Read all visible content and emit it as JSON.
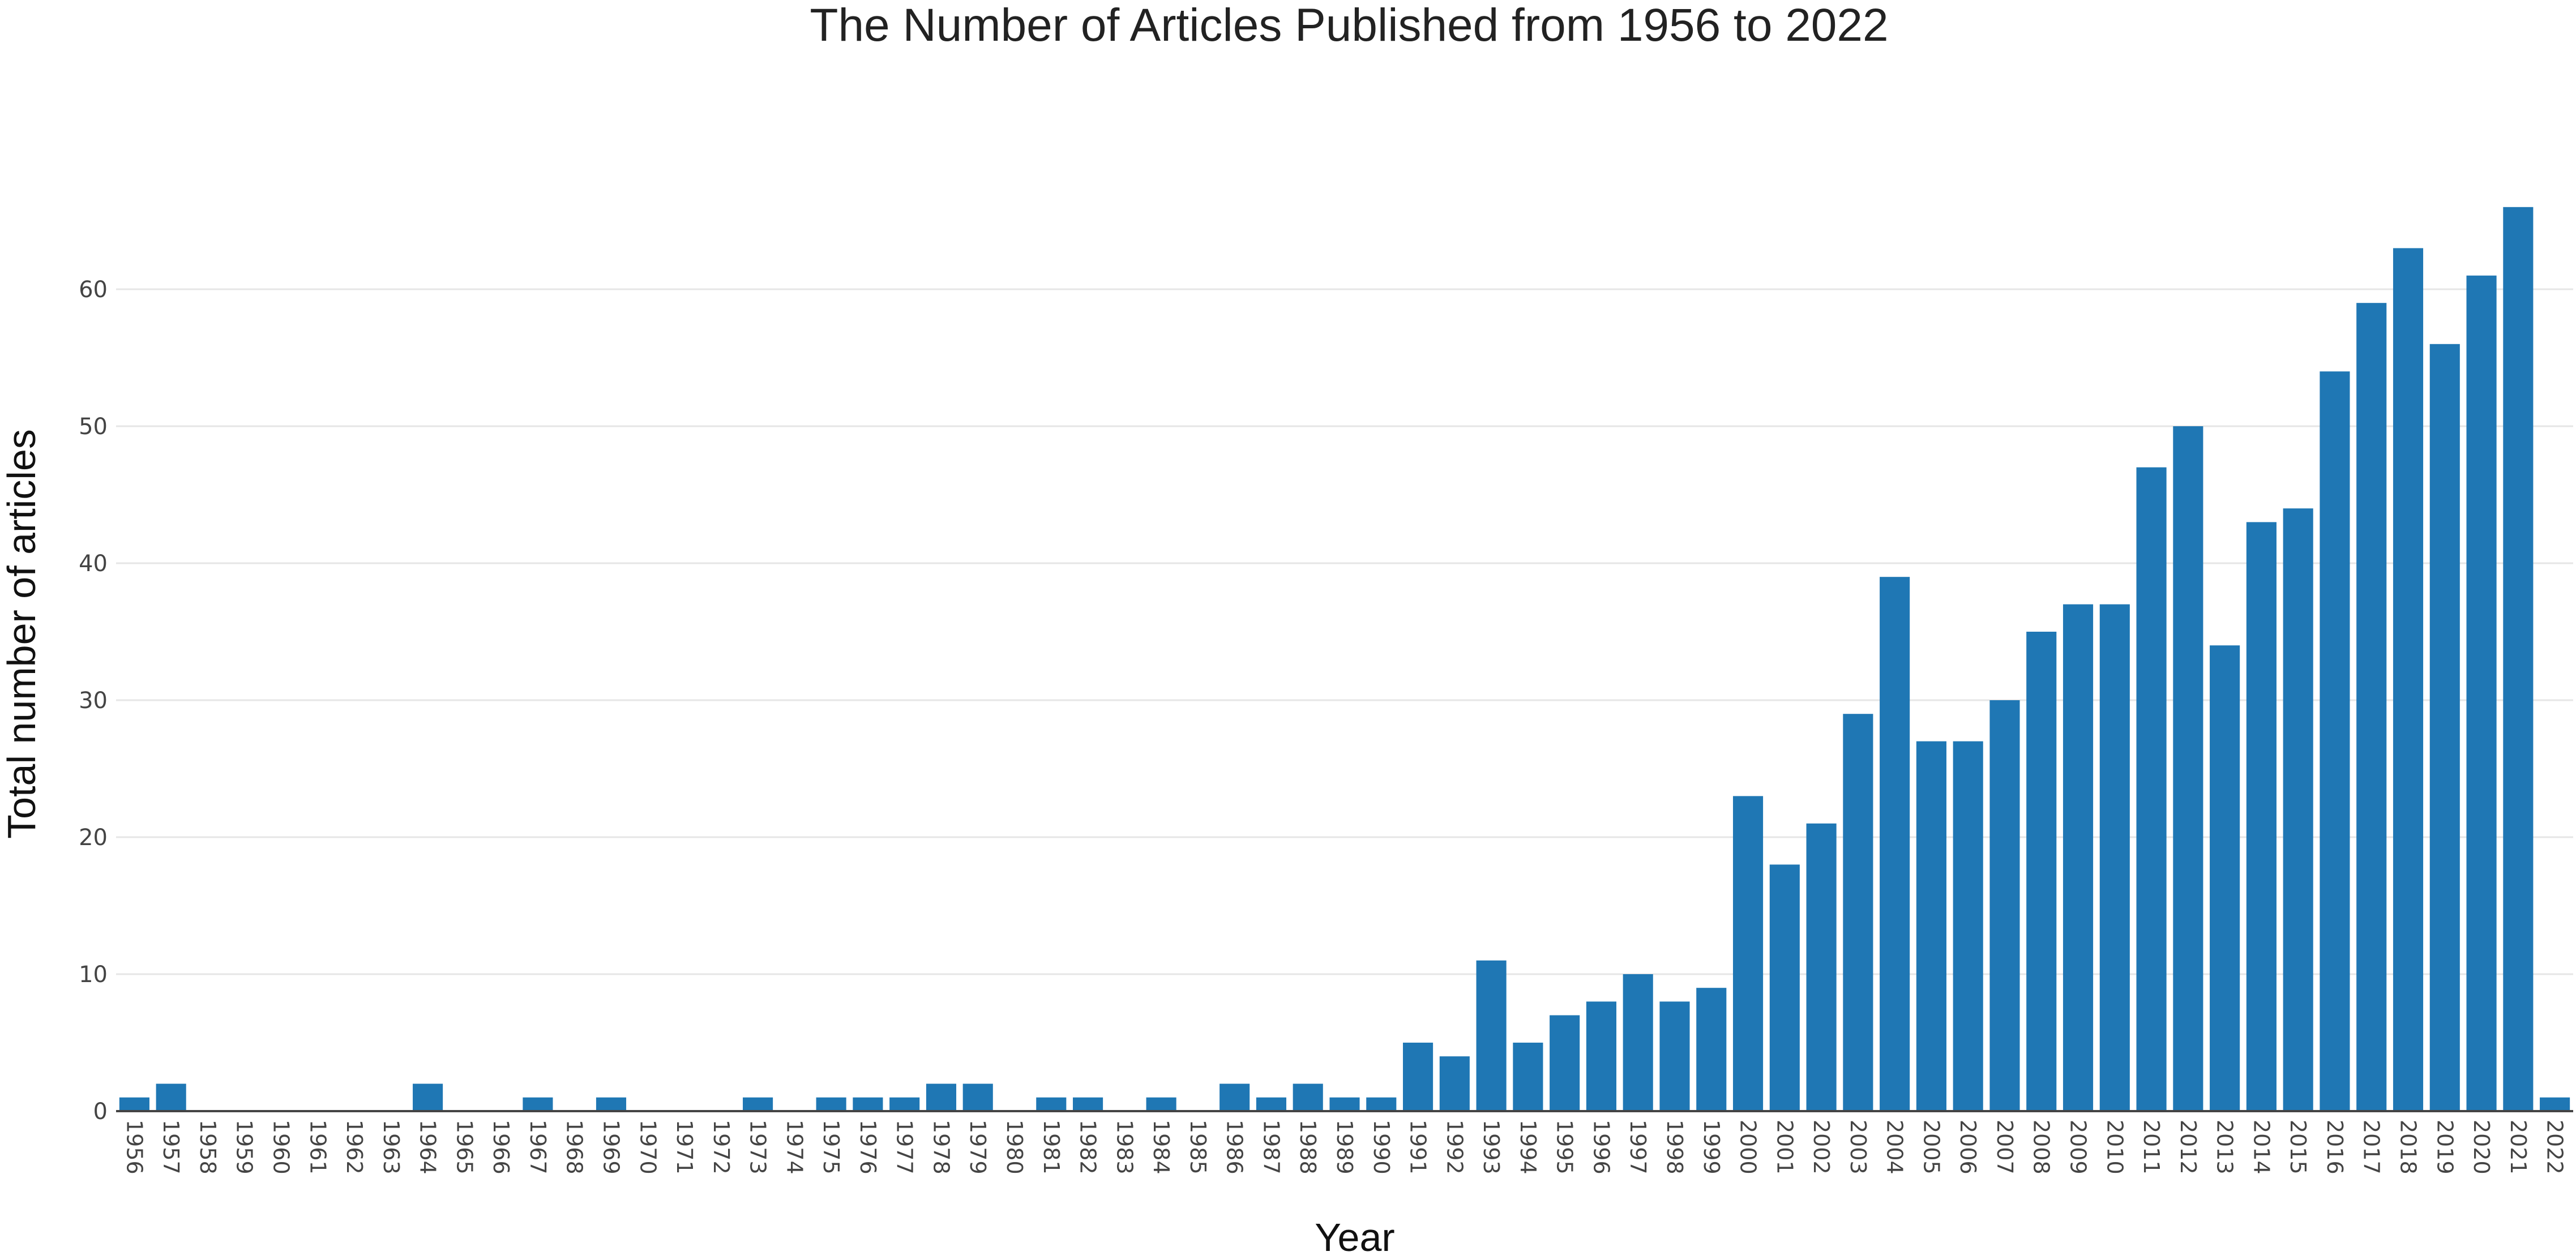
{
  "chart_data": {
    "type": "bar",
    "title": "The Number of Articles Published from 1956 to 2022",
    "xlabel": "Year",
    "ylabel": "Total number of articles",
    "categories": [
      "1956",
      "1957",
      "1958",
      "1959",
      "1960",
      "1961",
      "1962",
      "1963",
      "1964",
      "1965",
      "1966",
      "1967",
      "1968",
      "1969",
      "1970",
      "1971",
      "1972",
      "1973",
      "1974",
      "1975",
      "1976",
      "1977",
      "1978",
      "1979",
      "1980",
      "1981",
      "1982",
      "1983",
      "1984",
      "1985",
      "1986",
      "1987",
      "1988",
      "1989",
      "1990",
      "1991",
      "1992",
      "1993",
      "1994",
      "1995",
      "1996",
      "1997",
      "1998",
      "1999",
      "2000",
      "2001",
      "2002",
      "2003",
      "2004",
      "2005",
      "2006",
      "2007",
      "2008",
      "2009",
      "2010",
      "2011",
      "2012",
      "2013",
      "2014",
      "2015",
      "2016",
      "2017",
      "2018",
      "2019",
      "2020",
      "2021",
      "2022"
    ],
    "values": [
      1,
      2,
      0,
      0,
      0,
      0,
      0,
      0,
      2,
      0,
      0,
      1,
      0,
      1,
      0,
      0,
      0,
      1,
      0,
      1,
      1,
      1,
      2,
      2,
      0,
      1,
      1,
      0,
      1,
      0,
      2,
      1,
      2,
      1,
      1,
      5,
      4,
      11,
      5,
      7,
      8,
      10,
      8,
      9,
      23,
      18,
      21,
      29,
      39,
      27,
      27,
      30,
      35,
      37,
      37,
      47,
      50,
      34,
      43,
      44,
      54,
      59,
      63,
      56,
      61,
      66,
      1
    ],
    "ylim": [
      0,
      68
    ],
    "yticks": [
      0,
      10,
      20,
      30,
      40,
      50,
      60
    ],
    "grid": true,
    "legend": "none",
    "bar_color": "#1f77b4"
  }
}
